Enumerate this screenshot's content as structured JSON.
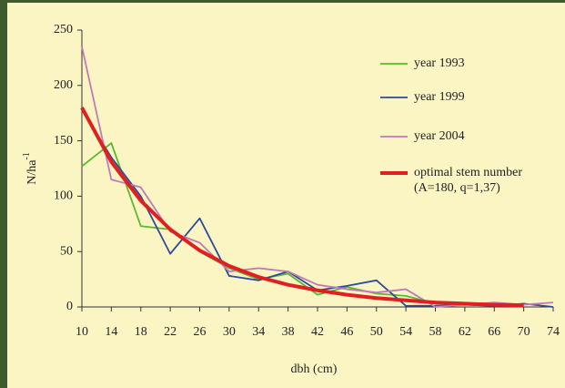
{
  "chart_data": {
    "type": "line",
    "x": [
      10,
      14,
      18,
      22,
      26,
      30,
      34,
      38,
      42,
      46,
      50,
      54,
      58,
      62,
      66,
      70,
      74
    ],
    "series": [
      {
        "name": "year 1993",
        "color": "#5cb82e",
        "values": [
          127,
          148,
          73,
          70,
          50,
          35,
          25,
          30,
          11,
          18,
          12,
          10,
          3,
          2,
          2,
          1,
          null
        ]
      },
      {
        "name": "year 1999",
        "color": "#2e4a9a",
        "values": [
          178,
          135,
          100,
          48,
          80,
          28,
          24,
          32,
          15,
          19,
          24,
          1,
          1,
          2,
          1,
          3,
          0
        ]
      },
      {
        "name": "year 2004",
        "color": "#c07ab8",
        "values": [
          235,
          115,
          108,
          68,
          58,
          32,
          35,
          32,
          20,
          16,
          13,
          16,
          0,
          2,
          4,
          2,
          4
        ]
      },
      {
        "name": "optimal stem number\n(A=180, q=1,37)",
        "color": "#e02020",
        "values": [
          180,
          131,
          96,
          70,
          51,
          37,
          27,
          20,
          15,
          11,
          8,
          6,
          4,
          3,
          2,
          1.5,
          null
        ]
      }
    ],
    "xlabel": "dbh (cm)",
    "ylabel": "N/ha",
    "ylabel_superscript": "-1",
    "xlim": [
      10,
      74
    ],
    "xticks": [
      10,
      14,
      18,
      22,
      26,
      30,
      34,
      38,
      42,
      46,
      50,
      54,
      58,
      62,
      66,
      70,
      74
    ],
    "ylim": [
      0,
      250
    ],
    "yticks": [
      0,
      50,
      100,
      150,
      200,
      250
    ],
    "legend": "upper right"
  }
}
